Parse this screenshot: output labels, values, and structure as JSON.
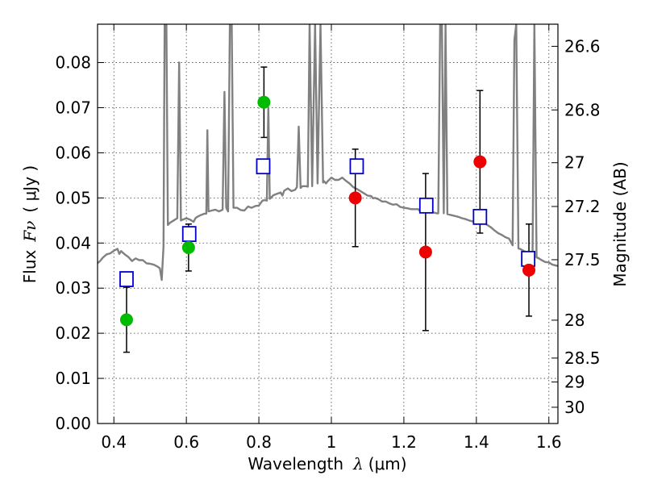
{
  "chart_data": {
    "type": "scatter",
    "xlabel": "Wavelength",
    "xlabel_symbol": "λ",
    "xlabel_unit": "(μm)",
    "ylabel": "Flux",
    "ylabel_symbol": "Fν",
    "ylabel_unit": "( μJy )",
    "y2label": "Magnitude (AB)",
    "xlim": [
      0.355,
      1.625
    ],
    "ylim": [
      0.0,
      0.0885
    ],
    "grid": true,
    "x_ticks": [
      0.4,
      0.6,
      0.8,
      1.0,
      1.2,
      1.4,
      1.6
    ],
    "x_tick_labels": [
      "0.4",
      "0.6",
      "0.8",
      "1",
      "1.2",
      "1.4",
      "1.6"
    ],
    "y_ticks": [
      0.0,
      0.01,
      0.02,
      0.03,
      0.04,
      0.05,
      0.06,
      0.07,
      0.08
    ],
    "y_tick_labels": [
      "0.00",
      "0.01",
      "0.02",
      "0.03",
      "0.04",
      "0.05",
      "0.06",
      "0.07",
      "0.08"
    ],
    "y2_ticks": [
      {
        "flux": 0.0836,
        "label": "26.6"
      },
      {
        "flux": 0.0695,
        "label": "26.8"
      },
      {
        "flux": 0.0578,
        "label": "27"
      },
      {
        "flux": 0.0481,
        "label": "27.2"
      },
      {
        "flux": 0.0363,
        "label": "27.5"
      },
      {
        "flux": 0.0229,
        "label": "28"
      },
      {
        "flux": 0.0145,
        "label": "28.5"
      },
      {
        "flux": 0.0092,
        "label": "29"
      },
      {
        "flux": 0.0036,
        "label": "30"
      }
    ],
    "series": [
      {
        "kind": "detections",
        "color": "#00bb00",
        "points": [
          {
            "x": 0.435,
            "y": 0.023,
            "yerr": 0.0072
          },
          {
            "x": 0.606,
            "y": 0.039,
            "yerr": 0.0052
          },
          {
            "x": 0.814,
            "y": 0.0712,
            "yerr": 0.0078
          }
        ]
      },
      {
        "kind": "low-significance",
        "color": "#ee0000",
        "points": [
          {
            "x": 1.066,
            "y": 0.05,
            "yerr": 0.0108
          },
          {
            "x": 1.26,
            "y": 0.038,
            "yerr": 0.0174
          },
          {
            "x": 1.41,
            "y": 0.058,
            "yerr": 0.0158
          },
          {
            "x": 1.545,
            "y": 0.034,
            "yerr": 0.0102
          }
        ]
      },
      {
        "kind": "model-photometry",
        "color": "#0000cc",
        "points": [
          {
            "x": 0.435,
            "y": 0.032
          },
          {
            "x": 0.608,
            "y": 0.042
          },
          {
            "x": 0.812,
            "y": 0.057
          },
          {
            "x": 1.07,
            "y": 0.057
          },
          {
            "x": 1.262,
            "y": 0.0483
          },
          {
            "x": 1.41,
            "y": 0.0458
          },
          {
            "x": 1.543,
            "y": 0.0365
          }
        ]
      }
    ],
    "spectrum": {
      "color": "#808080",
      "points": [
        [
          0.355,
          0.0355
        ],
        [
          0.362,
          0.036
        ],
        [
          0.37,
          0.0368
        ],
        [
          0.38,
          0.0375
        ],
        [
          0.39,
          0.0377
        ],
        [
          0.4,
          0.0383
        ],
        [
          0.41,
          0.0387
        ],
        [
          0.415,
          0.0376
        ],
        [
          0.42,
          0.0382
        ],
        [
          0.43,
          0.0375
        ],
        [
          0.44,
          0.0369
        ],
        [
          0.45,
          0.036
        ],
        [
          0.46,
          0.0366
        ],
        [
          0.47,
          0.0362
        ],
        [
          0.48,
          0.0362
        ],
        [
          0.49,
          0.0355
        ],
        [
          0.5,
          0.0354
        ],
        [
          0.51,
          0.0352
        ],
        [
          0.52,
          0.0348
        ],
        [
          0.527,
          0.0344
        ],
        [
          0.532,
          0.0318
        ],
        [
          0.537,
          0.0392
        ],
        [
          0.54,
          0.0885
        ],
        [
          0.545,
          0.0885
        ],
        [
          0.549,
          0.044
        ],
        [
          0.555,
          0.0445
        ],
        [
          0.565,
          0.045
        ],
        [
          0.575,
          0.0455
        ],
        [
          0.58,
          0.08
        ],
        [
          0.585,
          0.045
        ],
        [
          0.59,
          0.0452
        ],
        [
          0.6,
          0.0455
        ],
        [
          0.61,
          0.0452
        ],
        [
          0.62,
          0.0447
        ],
        [
          0.625,
          0.0455
        ],
        [
          0.63,
          0.0458
        ],
        [
          0.64,
          0.0462
        ],
        [
          0.65,
          0.0465
        ],
        [
          0.655,
          0.0465
        ],
        [
          0.658,
          0.065
        ],
        [
          0.661,
          0.047
        ],
        [
          0.67,
          0.0472
        ],
        [
          0.68,
          0.0474
        ],
        [
          0.69,
          0.047
        ],
        [
          0.7,
          0.0474
        ],
        [
          0.705,
          0.0735
        ],
        [
          0.71,
          0.0478
        ],
        [
          0.715,
          0.047
        ],
        [
          0.72,
          0.0885
        ],
        [
          0.725,
          0.0885
        ],
        [
          0.73,
          0.0478
        ],
        [
          0.74,
          0.0478
        ],
        [
          0.75,
          0.0473
        ],
        [
          0.76,
          0.0472
        ],
        [
          0.77,
          0.0481
        ],
        [
          0.78,
          0.0478
        ],
        [
          0.79,
          0.0482
        ],
        [
          0.8,
          0.0483
        ],
        [
          0.81,
          0.0494
        ],
        [
          0.817,
          0.0495
        ],
        [
          0.822,
          0.0494
        ],
        [
          0.826,
          0.07
        ],
        [
          0.83,
          0.0498
        ],
        [
          0.84,
          0.0506
        ],
        [
          0.85,
          0.0509
        ],
        [
          0.86,
          0.0512
        ],
        [
          0.865,
          0.0505
        ],
        [
          0.87,
          0.0516
        ],
        [
          0.88,
          0.0521
        ],
        [
          0.89,
          0.0515
        ],
        [
          0.9,
          0.0518
        ],
        [
          0.905,
          0.0524
        ],
        [
          0.91,
          0.0658
        ],
        [
          0.915,
          0.0522
        ],
        [
          0.92,
          0.0526
        ],
        [
          0.93,
          0.0526
        ],
        [
          0.935,
          0.0525
        ],
        [
          0.94,
          0.0885
        ],
        [
          0.947,
          0.0526
        ],
        [
          0.955,
          0.0885
        ],
        [
          0.962,
          0.0532
        ],
        [
          0.97,
          0.0885
        ],
        [
          0.977,
          0.0534
        ],
        [
          0.98,
          0.0537
        ],
        [
          0.985,
          0.0532
        ],
        [
          0.99,
          0.0537
        ],
        [
          1.0,
          0.0545
        ],
        [
          1.01,
          0.054
        ],
        [
          1.02,
          0.054
        ],
        [
          1.03,
          0.0545
        ],
        [
          1.04,
          0.0538
        ],
        [
          1.05,
          0.0532
        ],
        [
          1.06,
          0.0524
        ],
        [
          1.07,
          0.052
        ],
        [
          1.08,
          0.0515
        ],
        [
          1.09,
          0.051
        ],
        [
          1.1,
          0.0505
        ],
        [
          1.11,
          0.0504
        ],
        [
          1.115,
          0.0499
        ],
        [
          1.12,
          0.05
        ],
        [
          1.13,
          0.0497
        ],
        [
          1.14,
          0.0492
        ],
        [
          1.15,
          0.0492
        ],
        [
          1.16,
          0.0488
        ],
        [
          1.17,
          0.0485
        ],
        [
          1.18,
          0.0486
        ],
        [
          1.19,
          0.048
        ],
        [
          1.2,
          0.0478
        ],
        [
          1.21,
          0.0477
        ],
        [
          1.22,
          0.0475
        ],
        [
          1.23,
          0.0475
        ],
        [
          1.24,
          0.0475
        ],
        [
          1.245,
          0.047
        ],
        [
          1.25,
          0.0472
        ],
        [
          1.26,
          0.0475
        ],
        [
          1.268,
          0.0485
        ],
        [
          1.273,
          0.0468
        ],
        [
          1.28,
          0.0468
        ],
        [
          1.29,
          0.0466
        ],
        [
          1.295,
          0.0466
        ],
        [
          1.3,
          0.0885
        ],
        [
          1.305,
          0.0885
        ],
        [
          1.31,
          0.0466
        ],
        [
          1.315,
          0.0885
        ],
        [
          1.32,
          0.0464
        ],
        [
          1.33,
          0.0462
        ],
        [
          1.34,
          0.046
        ],
        [
          1.35,
          0.0458
        ],
        [
          1.36,
          0.0455
        ],
        [
          1.37,
          0.0453
        ],
        [
          1.38,
          0.045
        ],
        [
          1.39,
          0.0448
        ],
        [
          1.4,
          0.0445
        ],
        [
          1.41,
          0.0445
        ],
        [
          1.42,
          0.0445
        ],
        [
          1.43,
          0.044
        ],
        [
          1.44,
          0.0435
        ],
        [
          1.45,
          0.0428
        ],
        [
          1.46,
          0.0422
        ],
        [
          1.47,
          0.0418
        ],
        [
          1.48,
          0.0413
        ],
        [
          1.49,
          0.041
        ],
        [
          1.5,
          0.0395
        ],
        [
          1.505,
          0.085
        ],
        [
          1.51,
          0.0885
        ],
        [
          1.516,
          0.0388
        ],
        [
          1.52,
          0.0387
        ],
        [
          1.53,
          0.0383
        ],
        [
          1.54,
          0.0378
        ],
        [
          1.55,
          0.0373
        ],
        [
          1.555,
          0.037
        ],
        [
          1.56,
          0.0885
        ],
        [
          1.566,
          0.0368
        ],
        [
          1.57,
          0.0367
        ],
        [
          1.58,
          0.0362
        ],
        [
          1.59,
          0.0358
        ],
        [
          1.6,
          0.0357
        ],
        [
          1.61,
          0.0352
        ],
        [
          1.625,
          0.0349
        ]
      ]
    }
  }
}
